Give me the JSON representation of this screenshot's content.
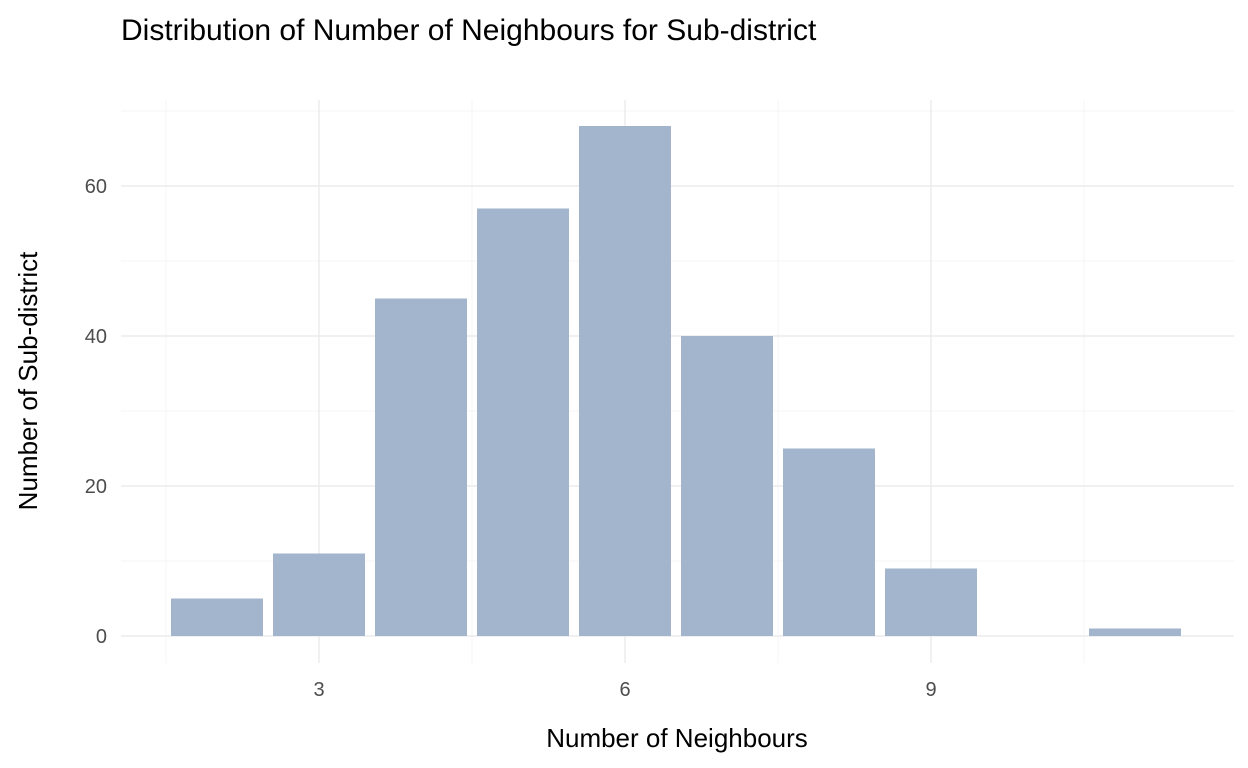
{
  "chart_data": {
    "type": "bar",
    "title": "Distribution of Number of Neighbours for Sub-district",
    "xlabel": "Number of Neighbours",
    "ylabel": "Number of Sub-district",
    "x": [
      2,
      3,
      4,
      5,
      6,
      7,
      8,
      9,
      11
    ],
    "values": [
      5,
      11,
      45,
      57,
      68,
      40,
      25,
      9,
      1
    ],
    "xlim": [
      1.5,
      11.5
    ],
    "ylim": [
      0,
      70
    ],
    "x_ticks": [
      3,
      6,
      9
    ],
    "x_tick_labels": [
      "3",
      "6",
      "9"
    ],
    "y_ticks": [
      0,
      20,
      40,
      60
    ],
    "y_tick_labels": [
      "0",
      "20",
      "40",
      "60"
    ],
    "bar_color": "#a2b5cd",
    "grid": true,
    "legend": "none"
  }
}
